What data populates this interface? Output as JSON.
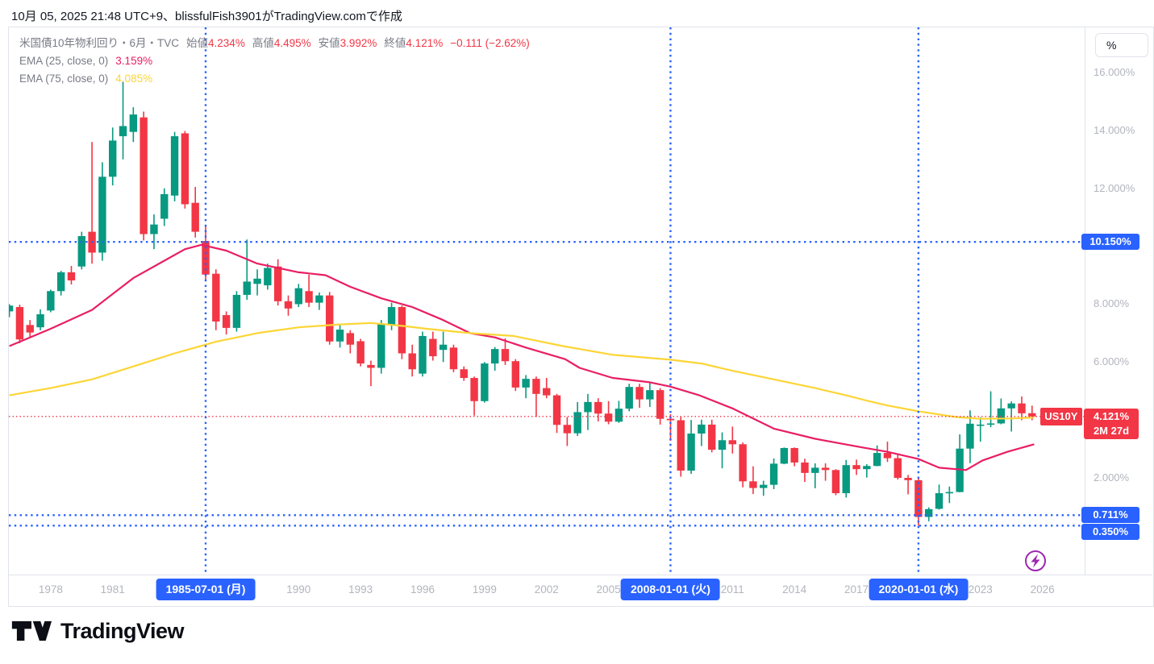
{
  "header": {
    "attribution": "10月 05, 2025 21:48 UTC+9、blissfulFish3901がTradingView.comで作成"
  },
  "legend": {
    "symbol_title": "米国債10年物利回り・6月・TVC",
    "ohlc": [
      {
        "label": "始値",
        "value": "4.234%"
      },
      {
        "label": "高値",
        "value": "4.495%"
      },
      {
        "label": "安値",
        "value": "3.992%"
      },
      {
        "label": "終値",
        "value": "4.121%"
      }
    ],
    "change": "−0.111 (−2.62%)",
    "ema25_label": "EMA (25, close, 0)",
    "ema25_value": "3.159%",
    "ema75_label": "EMA (75, close, 0)",
    "ema75_value": "4.085%"
  },
  "symbol_label": "US10Y",
  "price_axis": {
    "unit": "%",
    "ticks": [
      {
        "value": 16,
        "label": "16.000%"
      },
      {
        "value": 14,
        "label": "14.000%"
      },
      {
        "value": 12,
        "label": "12.000%"
      },
      {
        "value": 8,
        "label": "8.000%"
      },
      {
        "value": 6,
        "label": "6.000%"
      },
      {
        "value": 2,
        "label": "2.000%"
      }
    ],
    "level_badges": [
      {
        "value": 10.15,
        "label": "10.150%"
      },
      {
        "value": 0.711,
        "label": "0.711%"
      },
      {
        "value": 0.35,
        "label": "0.350%"
      }
    ],
    "price_badge": {
      "value": 4.121,
      "price": "4.121%",
      "countdown": "2M 27d"
    }
  },
  "time_axis": {
    "years": [
      {
        "t": 1978,
        "label": "1978"
      },
      {
        "t": 1981,
        "label": "1981"
      },
      {
        "t": 1990,
        "label": "1990"
      },
      {
        "t": 1993,
        "label": "1993"
      },
      {
        "t": 1996,
        "label": "1996"
      },
      {
        "t": 1999,
        "label": "1999"
      },
      {
        "t": 2002,
        "label": "2002"
      },
      {
        "t": 2005,
        "label": "2005"
      },
      {
        "t": 2011,
        "label": "2011"
      },
      {
        "t": 2014,
        "label": "2014"
      },
      {
        "t": 2017,
        "label": "2017"
      },
      {
        "t": 2023,
        "label": "2023"
      },
      {
        "t": 2026,
        "label": "2026"
      }
    ],
    "date_badges": [
      {
        "t": 1985.5,
        "label": "1985-07-01 (月)"
      },
      {
        "t": 2008.0,
        "label": "2008-01-01 (火)"
      },
      {
        "t": 2020.0,
        "label": "2020-01-01 (水)"
      }
    ]
  },
  "footer": {
    "brand": "TradingView"
  },
  "colors": {
    "up": "#089981",
    "down": "#F23645",
    "accent_blue": "#2962FF",
    "ema25": "#E91E63",
    "ema75": "#FCD535",
    "price_line": "#F23645",
    "axis_text": "#B2B5BE",
    "legend_text": "#787B86",
    "border": "#E0E3EB",
    "text_dark": "#131722",
    "realtime_icon": "#9C27B0"
  },
  "chart_data": {
    "type": "bar",
    "subtype": "candlestick",
    "title": "米国債10年物利回り (US10Y) 6M candles, TVC",
    "x_unit": "decimal year (candle open date; 0.5 = July)",
    "y_unit": "yield %",
    "x_range": [
      1976.0,
      2028.0
    ],
    "y_range": [
      -1.3,
      17.6
    ],
    "grid": false,
    "candles_format": "[t, open, high, low, close]",
    "candles": [
      [
        1976.0,
        7.75,
        8.0,
        7.55,
        7.95
      ],
      [
        1976.5,
        7.9,
        7.98,
        6.65,
        6.78
      ],
      [
        1977.0,
        7.28,
        7.45,
        6.85,
        7.02
      ],
      [
        1977.5,
        7.2,
        7.82,
        7.1,
        7.65
      ],
      [
        1978.0,
        7.78,
        8.5,
        7.72,
        8.45
      ],
      [
        1978.5,
        8.45,
        9.15,
        8.3,
        9.1
      ],
      [
        1979.0,
        9.1,
        9.32,
        8.68,
        8.82
      ],
      [
        1979.5,
        9.3,
        10.5,
        9.2,
        10.35
      ],
      [
        1980.0,
        10.5,
        13.6,
        9.4,
        9.78
      ],
      [
        1980.5,
        9.78,
        12.9,
        9.5,
        12.4
      ],
      [
        1981.0,
        12.4,
        14.1,
        12.1,
        13.65
      ],
      [
        1981.5,
        13.8,
        15.7,
        13.0,
        14.15
      ],
      [
        1982.0,
        13.95,
        14.8,
        13.6,
        14.55
      ],
      [
        1982.5,
        14.45,
        14.65,
        10.2,
        10.42
      ],
      [
        1983.0,
        10.42,
        11.1,
        9.9,
        10.75
      ],
      [
        1983.5,
        10.95,
        12.0,
        10.7,
        11.8
      ],
      [
        1984.0,
        11.75,
        13.95,
        11.55,
        13.8
      ],
      [
        1984.5,
        13.9,
        13.98,
        11.3,
        11.45
      ],
      [
        1985.0,
        11.5,
        12.05,
        10.3,
        10.5
      ],
      [
        1985.5,
        10.18,
        10.72,
        8.85,
        9.02
      ],
      [
        1986.0,
        9.05,
        9.2,
        7.1,
        7.4
      ],
      [
        1986.5,
        7.62,
        7.75,
        6.95,
        7.18
      ],
      [
        1987.0,
        7.18,
        8.45,
        7.05,
        8.32
      ],
      [
        1987.5,
        8.32,
        10.23,
        8.15,
        8.78
      ],
      [
        1988.0,
        8.7,
        9.2,
        8.3,
        8.88
      ],
      [
        1988.5,
        8.65,
        9.4,
        8.5,
        9.25
      ],
      [
        1989.0,
        9.3,
        9.55,
        7.95,
        8.1
      ],
      [
        1989.5,
        8.1,
        8.3,
        7.6,
        7.85
      ],
      [
        1990.0,
        8.0,
        8.7,
        7.9,
        8.55
      ],
      [
        1990.5,
        8.45,
        9.02,
        7.9,
        8.05
      ],
      [
        1991.0,
        8.05,
        8.4,
        7.8,
        8.3
      ],
      [
        1991.5,
        8.3,
        8.42,
        6.6,
        6.71
      ],
      [
        1992.0,
        6.71,
        7.3,
        6.5,
        7.12
      ],
      [
        1992.5,
        7.0,
        7.1,
        6.3,
        6.6
      ],
      [
        1993.0,
        6.72,
        6.8,
        5.85,
        5.95
      ],
      [
        1993.5,
        5.9,
        6.05,
        5.17,
        5.8
      ],
      [
        1994.0,
        5.8,
        7.45,
        5.6,
        7.3
      ],
      [
        1994.5,
        7.3,
        8.05,
        7.1,
        7.9
      ],
      [
        1995.0,
        7.9,
        7.95,
        6.1,
        6.3
      ],
      [
        1995.5,
        6.3,
        6.6,
        5.5,
        5.75
      ],
      [
        1996.0,
        5.6,
        7.05,
        5.5,
        6.9
      ],
      [
        1996.5,
        6.8,
        7.05,
        6.05,
        6.2
      ],
      [
        1997.0,
        6.42,
        7.05,
        6.0,
        6.6
      ],
      [
        1997.5,
        6.5,
        6.6,
        5.65,
        5.75
      ],
      [
        1998.0,
        5.75,
        5.85,
        5.35,
        5.45
      ],
      [
        1998.5,
        5.45,
        5.5,
        4.15,
        4.65
      ],
      [
        1999.0,
        4.65,
        6.0,
        4.6,
        5.95
      ],
      [
        1999.5,
        5.95,
        6.52,
        5.7,
        6.45
      ],
      [
        2000.0,
        6.45,
        6.82,
        5.9,
        6.03
      ],
      [
        2000.5,
        6.03,
        6.1,
        5.0,
        5.12
      ],
      [
        2001.0,
        5.12,
        5.55,
        4.75,
        5.42
      ],
      [
        2001.5,
        5.42,
        5.5,
        4.1,
        4.9
      ],
      [
        2002.0,
        5.1,
        5.45,
        4.75,
        4.85
      ],
      [
        2002.5,
        4.85,
        4.9,
        3.55,
        3.83
      ],
      [
        2003.0,
        3.83,
        4.1,
        3.1,
        3.54
      ],
      [
        2003.5,
        3.54,
        4.62,
        3.45,
        4.27
      ],
      [
        2004.0,
        4.27,
        4.9,
        3.65,
        4.62
      ],
      [
        2004.5,
        4.62,
        4.75,
        3.95,
        4.22
      ],
      [
        2005.0,
        4.22,
        4.65,
        3.85,
        3.94
      ],
      [
        2005.5,
        3.94,
        4.66,
        3.9,
        4.39
      ],
      [
        2006.0,
        4.39,
        5.25,
        4.3,
        5.14
      ],
      [
        2006.5,
        5.14,
        5.25,
        4.42,
        4.71
      ],
      [
        2007.0,
        4.71,
        5.32,
        4.45,
        5.03
      ],
      [
        2007.5,
        5.03,
        5.1,
        3.84,
        4.04
      ],
      [
        2008.0,
        4.04,
        4.2,
        3.28,
        3.99
      ],
      [
        2008.5,
        3.99,
        4.1,
        2.04,
        2.25
      ],
      [
        2009.0,
        2.25,
        4.0,
        2.14,
        3.53
      ],
      [
        2009.5,
        3.53,
        4.01,
        3.1,
        3.84
      ],
      [
        2010.0,
        3.84,
        4.01,
        2.88,
        2.97
      ],
      [
        2010.5,
        2.97,
        3.57,
        2.33,
        3.3
      ],
      [
        2011.0,
        3.3,
        3.77,
        2.84,
        3.16
      ],
      [
        2011.5,
        3.16,
        3.22,
        1.67,
        1.88
      ],
      [
        2012.0,
        1.88,
        2.4,
        1.44,
        1.65
      ],
      [
        2012.5,
        1.65,
        1.9,
        1.38,
        1.76
      ],
      [
        2013.0,
        1.76,
        2.67,
        1.61,
        2.49
      ],
      [
        2013.5,
        2.49,
        3.05,
        2.47,
        3.03
      ],
      [
        2014.0,
        3.03,
        3.05,
        2.4,
        2.53
      ],
      [
        2014.5,
        2.53,
        2.66,
        1.86,
        2.17
      ],
      [
        2015.0,
        2.17,
        2.5,
        1.64,
        2.35
      ],
      [
        2015.5,
        2.35,
        2.5,
        1.9,
        2.27
      ],
      [
        2016.0,
        2.27,
        2.3,
        1.4,
        1.47
      ],
      [
        2016.5,
        1.47,
        2.62,
        1.32,
        2.44
      ],
      [
        2017.0,
        2.44,
        2.63,
        2.1,
        2.3
      ],
      [
        2017.5,
        2.3,
        2.47,
        2.01,
        2.41
      ],
      [
        2018.0,
        2.41,
        3.12,
        2.4,
        2.86
      ],
      [
        2018.5,
        2.86,
        3.25,
        2.55,
        2.68
      ],
      [
        2019.0,
        2.68,
        2.8,
        1.94,
        2.0
      ],
      [
        2019.5,
        2.0,
        2.1,
        1.43,
        1.92
      ],
      [
        2020.0,
        1.92,
        1.97,
        0.35,
        0.65
      ],
      [
        2020.5,
        0.65,
        0.98,
        0.5,
        0.92
      ],
      [
        2021.0,
        0.93,
        1.77,
        0.9,
        1.47
      ],
      [
        2021.5,
        1.47,
        1.7,
        1.13,
        1.51
      ],
      [
        2022.0,
        1.51,
        3.5,
        1.5,
        3.01
      ],
      [
        2022.5,
        3.01,
        4.33,
        2.51,
        3.87
      ],
      [
        2023.0,
        3.82,
        4.09,
        3.25,
        3.84
      ],
      [
        2023.5,
        3.84,
        4.99,
        3.75,
        3.88
      ],
      [
        2024.0,
        3.88,
        4.74,
        3.85,
        4.4
      ],
      [
        2024.5,
        4.4,
        4.64,
        3.6,
        4.57
      ],
      [
        2025.0,
        4.57,
        4.81,
        3.99,
        4.23
      ],
      [
        2025.5,
        4.234,
        4.495,
        3.992,
        4.121
      ]
    ],
    "series": [
      {
        "name": "EMA (25, close, 0)",
        "type": "line",
        "last_value": 3.159,
        "points": [
          [
            1976,
            6.55
          ],
          [
            1978,
            7.15
          ],
          [
            1980,
            7.8
          ],
          [
            1982,
            8.9
          ],
          [
            1983.5,
            9.5
          ],
          [
            1984.5,
            9.9
          ],
          [
            1985.3,
            10.05
          ],
          [
            1986.5,
            9.85
          ],
          [
            1988,
            9.4
          ],
          [
            1990,
            9.1
          ],
          [
            1991.3,
            9.0
          ],
          [
            1992.5,
            8.6
          ],
          [
            1994,
            8.2
          ],
          [
            1995.5,
            7.9
          ],
          [
            1997,
            7.45
          ],
          [
            1998.3,
            7.0
          ],
          [
            1999.5,
            6.85
          ],
          [
            2001,
            6.5
          ],
          [
            2002.9,
            6.1
          ],
          [
            2003.6,
            5.8
          ],
          [
            2005.2,
            5.45
          ],
          [
            2007,
            5.3
          ],
          [
            2008,
            5.15
          ],
          [
            2009.4,
            4.85
          ],
          [
            2011,
            4.4
          ],
          [
            2013,
            3.7
          ],
          [
            2015,
            3.35
          ],
          [
            2017.3,
            3.05
          ],
          [
            2018.5,
            2.9
          ],
          [
            2020,
            2.65
          ],
          [
            2021,
            2.35
          ],
          [
            2022.3,
            2.27
          ],
          [
            2023.1,
            2.6
          ],
          [
            2024.3,
            2.9
          ],
          [
            2025.6,
            3.16
          ]
        ]
      },
      {
        "name": "EMA (75, close, 0)",
        "type": "line",
        "last_value": 4.085,
        "points": [
          [
            1976,
            4.85
          ],
          [
            1978,
            5.1
          ],
          [
            1980,
            5.4
          ],
          [
            1982,
            5.85
          ],
          [
            1984,
            6.3
          ],
          [
            1986,
            6.7
          ],
          [
            1988,
            7.0
          ],
          [
            1990,
            7.2
          ],
          [
            1992,
            7.3
          ],
          [
            1993.5,
            7.35
          ],
          [
            1995,
            7.25
          ],
          [
            1996.2,
            7.15
          ],
          [
            1998.3,
            7.0
          ],
          [
            2000.4,
            6.9
          ],
          [
            2002.8,
            6.55
          ],
          [
            2005.2,
            6.25
          ],
          [
            2008,
            6.08
          ],
          [
            2009.5,
            5.95
          ],
          [
            2011,
            5.7
          ],
          [
            2013,
            5.4
          ],
          [
            2015,
            5.1
          ],
          [
            2016.5,
            4.85
          ],
          [
            2017.6,
            4.65
          ],
          [
            2018.5,
            4.5
          ],
          [
            2020,
            4.3
          ],
          [
            2021.8,
            4.1
          ],
          [
            2023,
            4.04
          ],
          [
            2024.5,
            4.05
          ],
          [
            2025.6,
            4.085
          ]
        ]
      }
    ],
    "h_dotted_levels": [
      10.15,
      0.711,
      0.35
    ],
    "v_dotted_lines": [
      1985.5,
      2008.0,
      2020.0
    ],
    "current_price_line": 4.121,
    "last_candle_ohlc": {
      "open": 4.234,
      "high": 4.495,
      "low": 3.992,
      "close": 4.121
    }
  }
}
